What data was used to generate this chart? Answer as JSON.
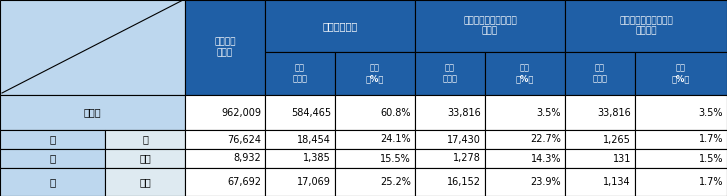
{
  "header_bg_dark": "#1F5FA6",
  "header_bg_light": "#BDD7EE",
  "header_text_light": "#FFFFFF",
  "header_text_dark": "#000000",
  "cell_bg_white": "#FFFFFF",
  "cell_bg_light_blue": "#DEEAF1",
  "border_color": "#000000",
  "text_color_dark": "#000000",
  "col1_header": "卒業者数\n（人）",
  "col2_header": "大学等進学者",
  "col3_header": "専修学校（専門課程）\n進学者",
  "col4_header": "専修学校（一般過程）\n等入学者",
  "sub_header_jissuu": "実数\n（人）",
  "sub_header_wariai": "割合\n（%）",
  "row0_label": "全日制",
  "row0_data": [
    "962,009",
    "584,465",
    "60.8%",
    "33,816",
    "3.5%",
    "33,816",
    "3.5%"
  ],
  "row1_label1": "通",
  "row1_label2": "信",
  "row1_label3": "制",
  "row1_sublabel1": "計",
  "row1_data1": [
    "76,624",
    "18,454",
    "24.1%",
    "17,430",
    "22.7%",
    "1,265",
    "1.7%"
  ],
  "row1_sublabel2": "公立",
  "row1_data2": [
    "8,932",
    "1,385",
    "15.5%",
    "1,278",
    "14.3%",
    "131",
    "1.5%"
  ],
  "row1_sublabel3": "私立",
  "row1_data3": [
    "67,692",
    "17,069",
    "25.2%",
    "16,152",
    "23.9%",
    "1,134",
    "1.7%"
  ]
}
